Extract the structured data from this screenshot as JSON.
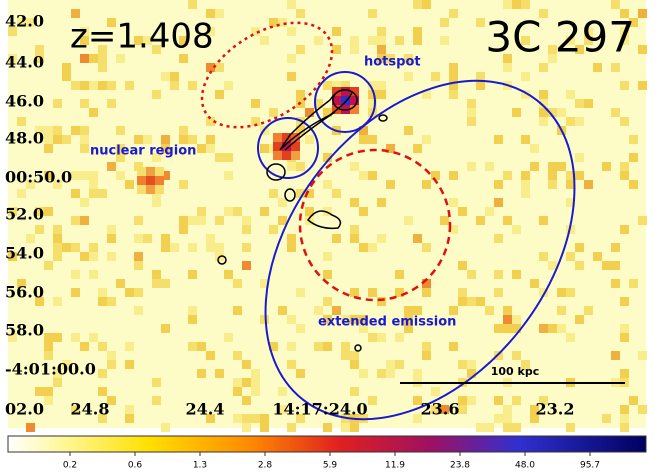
{
  "image": {
    "redshift": "z=1.408",
    "source": "3C 297",
    "regions": {
      "hotspot": "hotspot",
      "nuclear": "nuclear region",
      "extended": "extended emission"
    },
    "scale_bar": "100 kpc",
    "dec_labels": [
      "42.0",
      "44.0",
      "46.0",
      "48.0",
      "00:50.0",
      "52.0",
      "54.0",
      "56.0",
      "58.0",
      "-4:01:00.0",
      "02.0"
    ],
    "ra_labels": [
      "24.8",
      "24.4",
      "14:17:24.0",
      "23.6",
      "23.2"
    ]
  },
  "colorbar": {
    "labels": [
      "0.2",
      "0.6",
      "1.3",
      "2.8",
      "5.9",
      "11.9",
      "23.8",
      "48.0",
      "95.7"
    ]
  }
}
